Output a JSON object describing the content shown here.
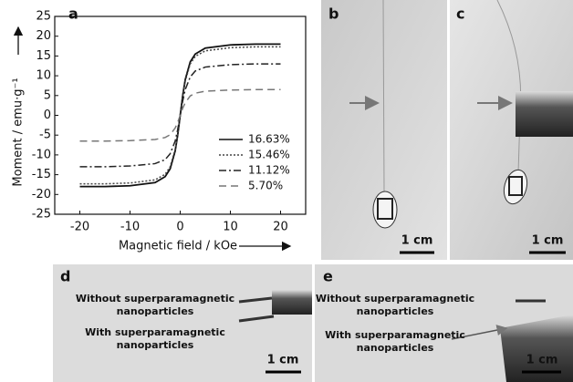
{
  "chart_data": {
    "type": "line",
    "panel_label": "a",
    "x_label": "Magnetic field / kOe",
    "y_label": "Moment / emu·g⁻¹",
    "x": [
      -20,
      -15,
      -10,
      -5,
      -3,
      -2,
      -1,
      -0.5,
      0,
      0.5,
      1,
      2,
      3,
      5,
      10,
      15,
      20
    ],
    "series": [
      {
        "name": "16.63%",
        "color": "#111111",
        "linestyle": "solid",
        "values": [
          -18,
          -18,
          -17.8,
          -17,
          -15.5,
          -13.5,
          -9,
          -5,
          0,
          5,
          9,
          13.5,
          15.5,
          17,
          17.8,
          18,
          18
        ]
      },
      {
        "name": "15.46%",
        "color": "#444444",
        "linestyle": "dotted",
        "values": [
          -17.3,
          -17.3,
          -17.1,
          -16.3,
          -14.9,
          -13,
          -8.6,
          -4.8,
          0,
          4.8,
          8.6,
          13,
          14.9,
          16.3,
          17.1,
          17.3,
          17.3
        ]
      },
      {
        "name": "11.12%",
        "color": "#222222",
        "linestyle": "dashdot",
        "values": [
          -13,
          -13,
          -12.8,
          -12.2,
          -11.2,
          -9.7,
          -6.5,
          -3.6,
          0,
          3.6,
          6.5,
          9.7,
          11.2,
          12.2,
          12.8,
          13,
          13
        ]
      },
      {
        "name": "5.70%",
        "color": "#777777",
        "linestyle": "dashed",
        "values": [
          -6.5,
          -6.5,
          -6.4,
          -6.1,
          -5.6,
          -4.9,
          -3.2,
          -1.8,
          0,
          1.8,
          3.2,
          4.9,
          5.6,
          6.1,
          6.4,
          6.5,
          6.5
        ]
      }
    ],
    "xlim": [
      -25,
      25
    ],
    "ylim": [
      -25,
      25
    ],
    "xticks": [
      -20,
      -10,
      0,
      10,
      20
    ],
    "yticks": [
      -25,
      -20,
      -15,
      -10,
      -5,
      0,
      5,
      10,
      15,
      20,
      25
    ],
    "legend": "lower right"
  },
  "panels": [
    {
      "label": "b",
      "scale_bar": "1 cm"
    },
    {
      "label": "c",
      "scale_bar": "1 cm"
    },
    {
      "label": "d",
      "scale_bar": "1 cm",
      "annotations": [
        [
          "Without superparamagnetic",
          "nanoparticles"
        ],
        [
          "With superparamagnetic",
          "nanoparticles"
        ]
      ]
    },
    {
      "label": "e",
      "scale_bar": "1 cm",
      "annotations": [
        [
          "Without superparamagnetic",
          "nanoparticles"
        ],
        [
          "With superparamagnetic",
          "nanoparticles"
        ]
      ]
    }
  ]
}
